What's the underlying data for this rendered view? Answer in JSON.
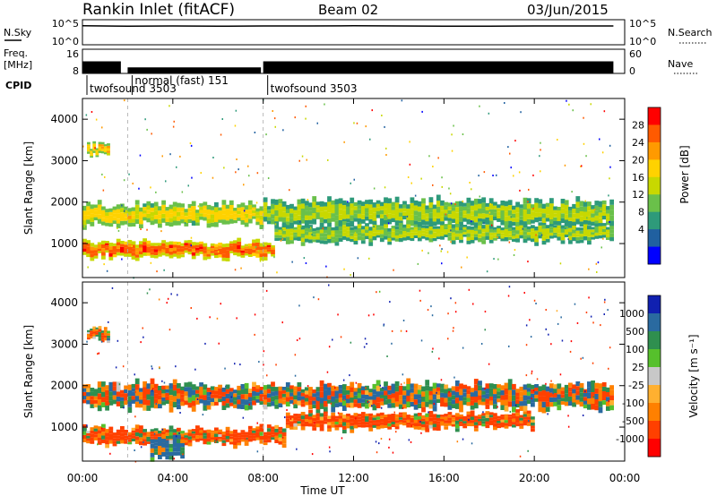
{
  "header": {
    "title": "Rankin Inlet (fitACF)",
    "beam": "Beam 02",
    "date": "03/Jun/2015"
  },
  "noise_panel": {
    "left_label": "N.Sky",
    "left_ticks": [
      "10^5",
      "10^0"
    ],
    "right_ticks": [
      "10^5",
      "10^0"
    ],
    "right_label": "N.Search"
  },
  "freq_panel": {
    "left_label_top": "Freq.",
    "left_label_bottom": "[MHz]",
    "left_ticks": [
      "16",
      "8"
    ],
    "right_ticks": [
      "60",
      "0"
    ],
    "right_label": "Nave"
  },
  "cpid": {
    "label": "CPID",
    "modes": [
      {
        "name": "twofsound 3503",
        "start_hour": 0.0
      },
      {
        "name": "normal (fast) 151",
        "start_hour": 2.0
      },
      {
        "name": "twofsound 3503",
        "start_hour": 8.0
      }
    ]
  },
  "time_axis": {
    "label": "Time UT",
    "ticks": [
      "00:00",
      "04:00",
      "08:00",
      "12:00",
      "16:00",
      "20:00",
      "00:00"
    ]
  },
  "power_panel": {
    "ylabel": "Slant Range [km]",
    "yticks": [
      "4000",
      "3000",
      "2000",
      "1000"
    ],
    "colorbar_label": "Power [dB]",
    "colorbar_ticks": [
      "28",
      "24",
      "20",
      "16",
      "12",
      "8",
      "4"
    ],
    "colorbar_colors": [
      "#ff0000",
      "#ff5a00",
      "#ff9a00",
      "#ffd200",
      "#c8d800",
      "#6ac04a",
      "#2e9a7a",
      "#2060a0",
      "#0000ff"
    ]
  },
  "velocity_panel": {
    "ylabel": "Slant Range [km]",
    "yticks": [
      "4000",
      "3000",
      "2000",
      "1000"
    ],
    "colorbar_label": "Velocity [m s⁻¹]",
    "colorbar_ticks": [
      "1000",
      "500",
      "100",
      "25",
      "-25",
      "-100",
      "-500",
      "-1000"
    ],
    "colorbar_colors": [
      "#1020b0",
      "#2a6aa0",
      "#2f8f4f",
      "#56c02c",
      "#c8c8c8",
      "#ffb030",
      "#ff8000",
      "#ff4000",
      "#ff0000"
    ]
  },
  "chart_data": [
    {
      "type": "line",
      "title": "N.Sky / N.Search",
      "xlim": [
        0,
        24
      ],
      "note_scale": "log",
      "series": [
        {
          "name": "N.Sky",
          "x": [
            0,
            2,
            4,
            6,
            8,
            10,
            12,
            14,
            16,
            18,
            20,
            22,
            23.5
          ],
          "y": [
            10000,
            8000,
            9000,
            8000,
            9000,
            9000,
            10000,
            9000,
            8000,
            8000,
            9000,
            9000,
            9000
          ]
        }
      ]
    },
    {
      "type": "bar",
      "title": "Freq. [MHz] / Nave",
      "xlim": [
        0,
        24
      ],
      "ylim": [
        8,
        16
      ],
      "series": [
        {
          "name": "Freq.",
          "x": [
            0,
            1.7,
            2,
            7.9,
            8,
            23.5
          ],
          "y": [
            12,
            12,
            10,
            10,
            12,
            12
          ]
        }
      ]
    },
    {
      "type": "heatmap",
      "title": "Power [dB]",
      "xlabel": "Time UT",
      "ylabel": "Slant Range [km]",
      "xlim": [
        0,
        24
      ],
      "ylim": [
        180,
        4500
      ],
      "zlim": [
        0,
        30
      ],
      "bands": [
        {
          "t0": 0.0,
          "t1": 8.0,
          "r_center": 1700,
          "r_width": 500,
          "z": 18
        },
        {
          "t0": 8.0,
          "t1": 23.5,
          "r_center": 1750,
          "r_width": 600,
          "z": 14
        },
        {
          "t0": 0.0,
          "t1": 8.5,
          "r_center": 850,
          "r_width": 380,
          "z": 26
        },
        {
          "t0": 8.5,
          "t1": 23.5,
          "r_center": 1250,
          "r_width": 420,
          "z": 14
        },
        {
          "t0": 0.2,
          "t1": 1.2,
          "r_center": 3250,
          "r_width": 300,
          "z": 20
        }
      ]
    },
    {
      "type": "heatmap",
      "title": "Velocity [m s⁻¹]",
      "xlabel": "Time UT",
      "ylabel": "Slant Range [km]",
      "xlim": [
        0,
        24
      ],
      "ylim": [
        180,
        4500
      ],
      "zlim": [
        -1000,
        1000
      ],
      "bands": [
        {
          "t0": 0.0,
          "t1": 23.5,
          "r_center": 1750,
          "r_width": 600,
          "z": 0
        },
        {
          "t0": 0.0,
          "t1": 9.0,
          "r_center": 780,
          "r_width": 400,
          "z": -120
        },
        {
          "t0": 9.0,
          "t1": 20.0,
          "r_center": 1150,
          "r_width": 380,
          "z": -140
        },
        {
          "t0": 3.0,
          "t1": 4.5,
          "r_center": 500,
          "r_width": 500,
          "z": 150
        },
        {
          "t0": 0.2,
          "t1": 1.2,
          "r_center": 3250,
          "r_width": 300,
          "z": -80
        }
      ]
    }
  ]
}
